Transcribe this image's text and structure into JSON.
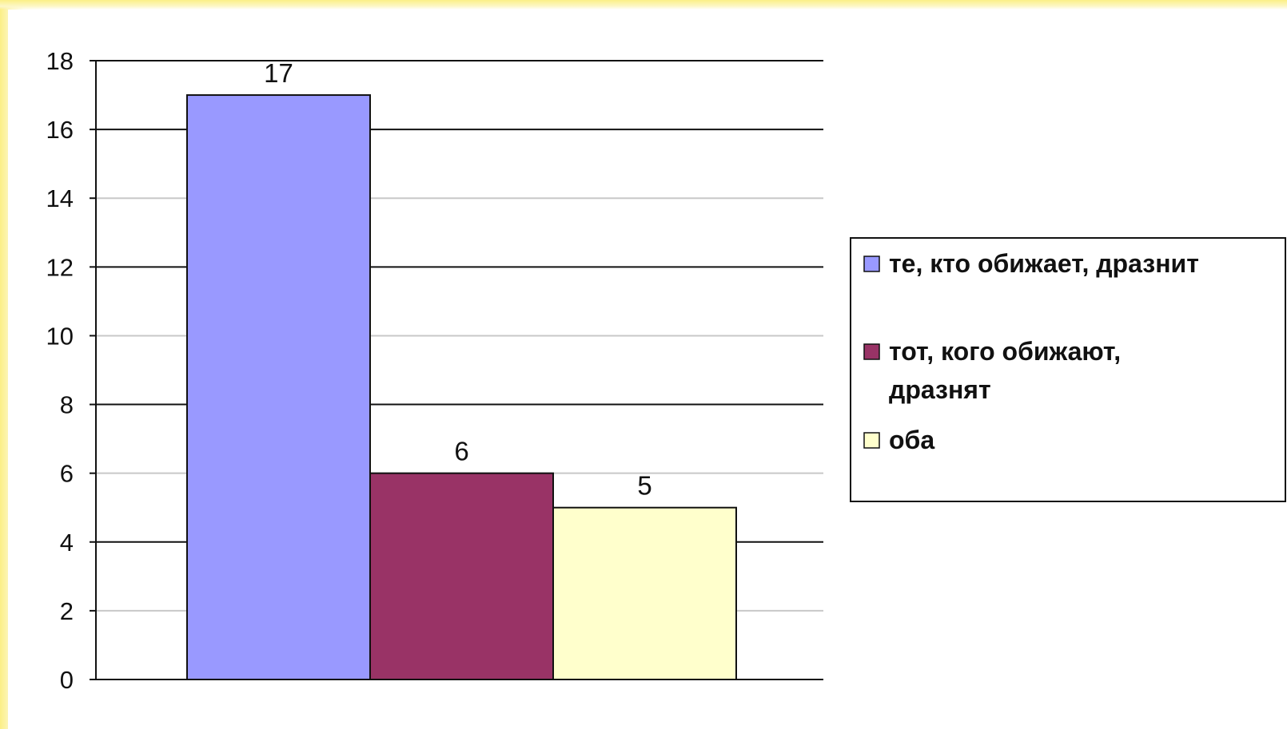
{
  "chart_data": {
    "type": "bar",
    "title": "",
    "xlabel": "",
    "ylabel": "",
    "ylim": [
      0,
      18
    ],
    "yticks": [
      0,
      2,
      4,
      6,
      8,
      10,
      12,
      14,
      16,
      18
    ],
    "grid": true,
    "legend_position": "right",
    "series": [
      {
        "name": "те, кто обижает, дразнит",
        "value": 17,
        "label": "17",
        "color": "#9999ff"
      },
      {
        "name": "тот, кого обижают, дразнят",
        "value": 6,
        "label": "6",
        "color": "#993366"
      },
      {
        "name": "оба",
        "value": 5,
        "label": "5",
        "color": "#ffffcc"
      }
    ]
  }
}
